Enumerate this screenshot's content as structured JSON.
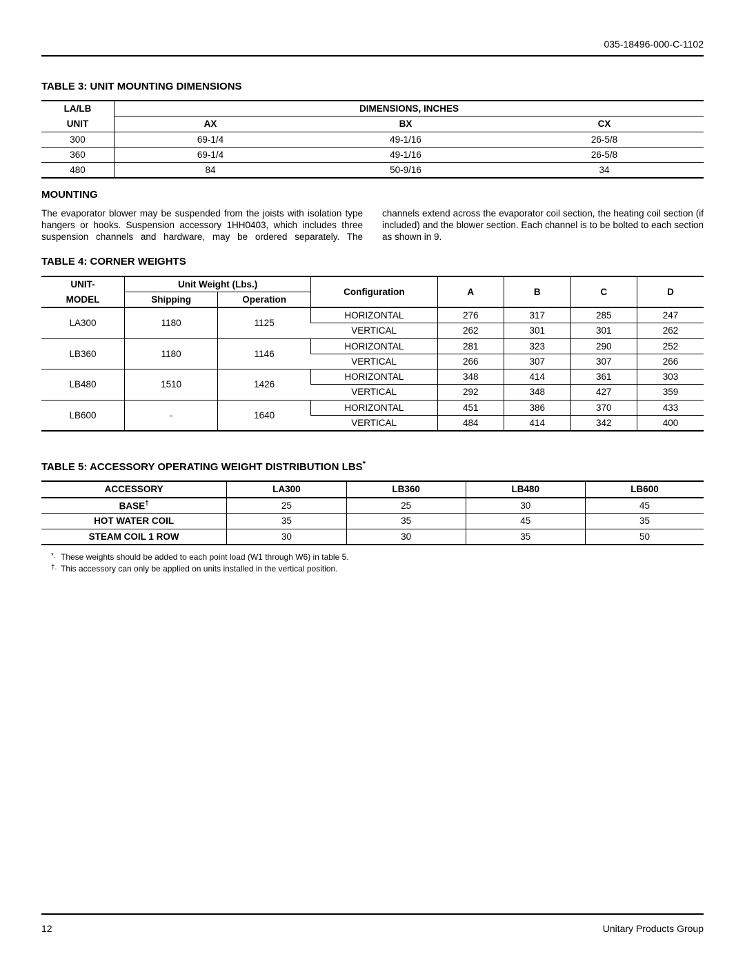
{
  "doc_id": "035-18496-000-C-1102",
  "table3": {
    "title": "TABLE 3: UNIT MOUNTING DIMENSIONS",
    "unit_header_top": "LA/LB",
    "unit_header_bot": "UNIT",
    "dims_header": "DIMENSIONS, INCHES",
    "cols": [
      "AX",
      "BX",
      "CX"
    ],
    "rows": [
      {
        "unit": "300",
        "ax": "69-1/4",
        "bx": "49-1/16",
        "cx": "26-5/8"
      },
      {
        "unit": "360",
        "ax": "69-1/4",
        "bx": "49-1/16",
        "cx": "26-5/8"
      },
      {
        "unit": "480",
        "ax": "84",
        "bx": "50-9/16",
        "cx": "34"
      }
    ]
  },
  "mounting": {
    "title": "MOUNTING",
    "text": "The evaporator blower may be suspended from the joists with isolation type hangers or hooks. Suspension accessory 1HH0403, which includes three suspension channels and hardware, may be ordered separately.    The channels extend across the evaporator coil section, the heating coil section (if included) and the blower section.   Each channel is to be bolted to each section as shown in 9."
  },
  "table4": {
    "title": "TABLE 4: CORNER WEIGHTS",
    "headers": {
      "unit_top": "UNIT-",
      "unit_bot": "MODEL",
      "weight_span": "Unit Weight (Lbs.)",
      "ship": "Shipping",
      "oper": "Operation",
      "config": "Configuration",
      "a": "A",
      "b": "B",
      "c": "C",
      "d": "D"
    },
    "rows": [
      {
        "model": "LA300",
        "ship": "1180",
        "oper": "1125",
        "h": {
          "cfg": "HORIZONTAL",
          "a": "276",
          "b": "317",
          "c": "285",
          "d": "247"
        },
        "v": {
          "cfg": "VERTICAL",
          "a": "262",
          "b": "301",
          "c": "301",
          "d": "262"
        }
      },
      {
        "model": "LB360",
        "ship": "1180",
        "oper": "1146",
        "h": {
          "cfg": "HORIZONTAL",
          "a": "281",
          "b": "323",
          "c": "290",
          "d": "252"
        },
        "v": {
          "cfg": "VERTICAL",
          "a": "266",
          "b": "307",
          "c": "307",
          "d": "266"
        }
      },
      {
        "model": "LB480",
        "ship": "1510",
        "oper": "1426",
        "h": {
          "cfg": "HORIZONTAL",
          "a": "348",
          "b": "414",
          "c": "361",
          "d": "303"
        },
        "v": {
          "cfg": "VERTICAL",
          "a": "292",
          "b": "348",
          "c": "427",
          "d": "359"
        }
      },
      {
        "model": "LB600",
        "ship": "-",
        "oper": "1640",
        "h": {
          "cfg": "HORIZONTAL",
          "a": "451",
          "b": "386",
          "c": "370",
          "d": "433"
        },
        "v": {
          "cfg": "VERTICAL",
          "a": "484",
          "b": "414",
          "c": "342",
          "d": "400"
        }
      }
    ]
  },
  "table5": {
    "title": "TABLE 5: ACCESSORY OPERATING WEIGHT DISTRIBUTION LBS",
    "title_sup": "*",
    "headers": {
      "acc": "ACCESSORY",
      "c1": "LA300",
      "c2": "LB360",
      "c3": "LB480",
      "c4": "LB600"
    },
    "rows": [
      {
        "acc": "BASE",
        "sup": "†",
        "v": [
          "25",
          "25",
          "30",
          "45"
        ]
      },
      {
        "acc": "HOT WATER COIL",
        "sup": "",
        "v": [
          "35",
          "35",
          "45",
          "35"
        ]
      },
      {
        "acc": "STEAM COIL 1 ROW",
        "sup": "",
        "v": [
          "30",
          "30",
          "35",
          "50"
        ]
      }
    ],
    "footnotes": {
      "star_mark": "*.",
      "star": "These weights should be added to each point load (W1 through W6) in table 5.",
      "dagger_mark": "†.",
      "dagger": "This accessory can only be applied on units installed in the vertical position."
    }
  },
  "footer": {
    "page": "12",
    "group": "Unitary Products Group"
  }
}
